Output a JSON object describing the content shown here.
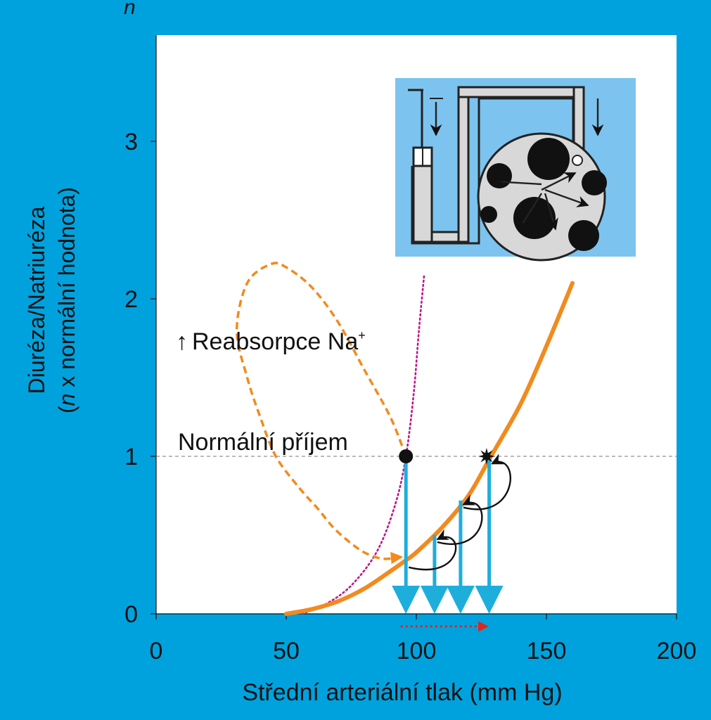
{
  "colors": {
    "background": "#00a2dd",
    "plot_area": "#ffffff",
    "pressure_natriuresis_curve": "#f28a1e",
    "reabsorption_curve": "#c0158a",
    "drop_arrows": "#1eaedb",
    "shift_arrow": "#e3241b",
    "inset_background": "#7cc4ef",
    "inset_tank": "#d8d8d8"
  },
  "chart_data": {
    "type": "line",
    "title": "",
    "xlabel": "Střední arteriální tlak (mm Hg)",
    "ylabel_line1": "Diuréza/Natriuréza",
    "ylabel_line2_italic": "n",
    "ylabel_line2_rest": " x normální hodnota)",
    "ylabel_line2_open": "(",
    "y_axis_symbol": "n",
    "xlim": [
      0,
      200
    ],
    "ylim": [
      0,
      3.7
    ],
    "xticks": [
      0,
      50,
      100,
      150,
      200
    ],
    "yticks": [
      0,
      1,
      2,
      3
    ],
    "grid": false,
    "series": [
      {
        "kind": "solid-orange",
        "x": [
          50,
          60,
          70,
          80,
          90,
          96,
          100,
          110,
          120,
          128,
          140,
          150,
          160
        ],
        "y": [
          0,
          0.03,
          0.08,
          0.16,
          0.27,
          0.34,
          0.39,
          0.55,
          0.75,
          0.98,
          1.33,
          1.7,
          2.1
        ]
      },
      {
        "kind": "dotted-magenta",
        "x": [
          56,
          65,
          75,
          85,
          92,
          96,
          99,
          101,
          103
        ],
        "y": [
          0,
          0.06,
          0.18,
          0.4,
          0.7,
          1.0,
          1.4,
          1.8,
          2.15
        ]
      },
      {
        "kind": "dashed-orange-loop",
        "x": [
          96,
          90,
          80,
          70,
          60,
          50,
          44,
          35,
          31,
          35,
          40,
          46,
          55,
          62,
          68,
          74,
          80,
          87,
          94
        ],
        "y": [
          1.0,
          1.25,
          1.55,
          1.85,
          2.07,
          2.2,
          2.22,
          2.1,
          1.8,
          1.5,
          1.25,
          1.0,
          0.8,
          0.67,
          0.55,
          0.46,
          0.39,
          0.35,
          0.36
        ]
      }
    ],
    "reference_line": {
      "y": 1,
      "style": "dashed"
    },
    "points": [
      {
        "x": 96,
        "y": 1,
        "marker": "circle"
      },
      {
        "x": 127,
        "y": 1,
        "marker": "star"
      }
    ],
    "drop_arrows": [
      {
        "x": 96,
        "from": 1.0,
        "to": 0
      },
      {
        "x": 107,
        "from": 0.5,
        "to": 0
      },
      {
        "x": 117,
        "from": 0.72,
        "to": 0
      },
      {
        "x": 128,
        "from": 0.98,
        "to": 0
      }
    ],
    "shift_arrow": {
      "from_x": 94,
      "to_x": 127,
      "y": -0.08
    },
    "annotations": {
      "reabsorption_arrow": "↑",
      "reabsorption_text": "Reabsorpce Na",
      "reabsorption_sup": "+",
      "normal_intake": "Normální příjem"
    }
  }
}
